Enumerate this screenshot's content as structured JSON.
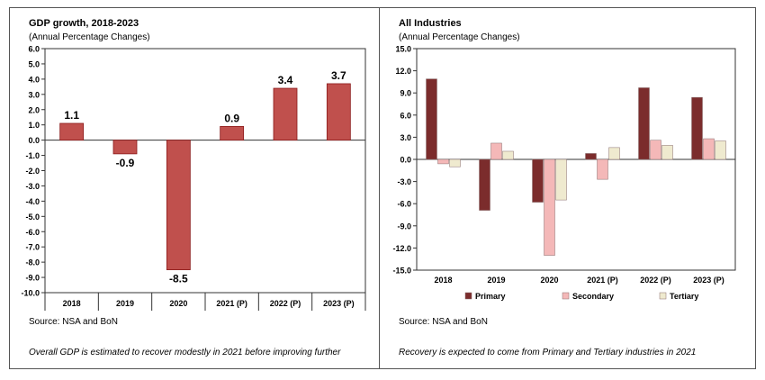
{
  "charts": [
    {
      "title": "GDP growth, 2018-2023",
      "subtitle": "(Annual Percentage Changes)",
      "source": "Source: NSA and BoN",
      "note": "Overall GDP is estimated to recover modestly in 2021 before improving further"
    },
    {
      "title": "All Industries",
      "subtitle": "(Annual Percentage Changes)",
      "source": "Source: NSA and BoN",
      "note": "Recovery is expected to come from Primary and Tertiary industries in 2021"
    }
  ],
  "chart_data": [
    {
      "type": "bar",
      "title": "GDP growth, 2018-2023",
      "subtitle": "(Annual Percentage Changes)",
      "categories": [
        "2018",
        "2019",
        "2020",
        "2021 (P)",
        "2022 (P)",
        "2023 (P)"
      ],
      "values": [
        1.1,
        -0.9,
        -8.5,
        0.9,
        3.4,
        3.7
      ],
      "data_labels": [
        "1.1",
        "-0.9",
        "-8.5",
        "0.9",
        "3.4",
        "3.7"
      ],
      "ylim": [
        -10.0,
        6.0
      ],
      "ytick_step": 1.0,
      "ytick_labels": [
        "6.0",
        "5.0",
        "4.0",
        "3.0",
        "2.0",
        "1.0",
        "0.0",
        "-1.0",
        "-2.0",
        "-3.0",
        "-4.0",
        "-5.0",
        "-6.0",
        "-7.0",
        "-8.0",
        "-9.0",
        "-10.0"
      ],
      "xlabel": "",
      "ylabel": "",
      "grid": false,
      "colors": {
        "bar": "#c0504d",
        "bar_edge": "#8b1a1a"
      }
    },
    {
      "type": "bar",
      "title": "All Industries",
      "subtitle": "(Annual Percentage Changes)",
      "categories": [
        "2018",
        "2019",
        "2020",
        "2021 (P)",
        "2022 (P)",
        "2023 (P)"
      ],
      "series": [
        {
          "name": "Primary",
          "values": [
            10.9,
            -6.9,
            -5.8,
            0.8,
            9.7,
            8.4
          ],
          "color": "#7b2c2c"
        },
        {
          "name": "Secondary",
          "values": [
            -0.6,
            2.2,
            -13.0,
            -2.7,
            2.6,
            2.8
          ],
          "color": "#f4b8b8"
        },
        {
          "name": "Tertiary",
          "values": [
            -1.0,
            1.1,
            -5.5,
            1.6,
            1.9,
            2.5
          ],
          "color": "#efeacf"
        }
      ],
      "ylim": [
        -15.0,
        15.0
      ],
      "ytick_step": 3.0,
      "ytick_labels": [
        "15.0",
        "12.0",
        "9.0",
        "6.0",
        "3.0",
        "0.0",
        "-3.0",
        "-6.0",
        "-9.0",
        "-12.0",
        "-15.0"
      ],
      "legend_position": "bottom",
      "xlabel": "",
      "ylabel": "",
      "grid": false
    }
  ]
}
